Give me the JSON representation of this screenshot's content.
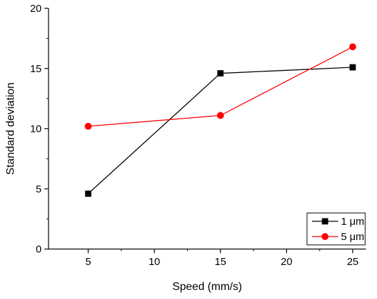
{
  "chart_data": {
    "type": "line",
    "xlabel": "Speed (mm/s)",
    "ylabel": "Standard deviation",
    "xlim": [
      2,
      26
    ],
    "ylim": [
      0,
      20
    ],
    "xticks": [
      5,
      10,
      15,
      20,
      25
    ],
    "yticks": [
      0,
      5,
      10,
      15,
      20
    ],
    "x": [
      5,
      15,
      25
    ],
    "grid": false,
    "legend_position": "bottom-right",
    "series": [
      {
        "name": "1 μm",
        "values": [
          4.6,
          14.6,
          15.1
        ],
        "color": "#000000",
        "marker": "square"
      },
      {
        "name": "5 μm",
        "values": [
          10.2,
          11.1,
          16.8
        ],
        "color": "#ff0000",
        "marker": "circle"
      }
    ]
  }
}
